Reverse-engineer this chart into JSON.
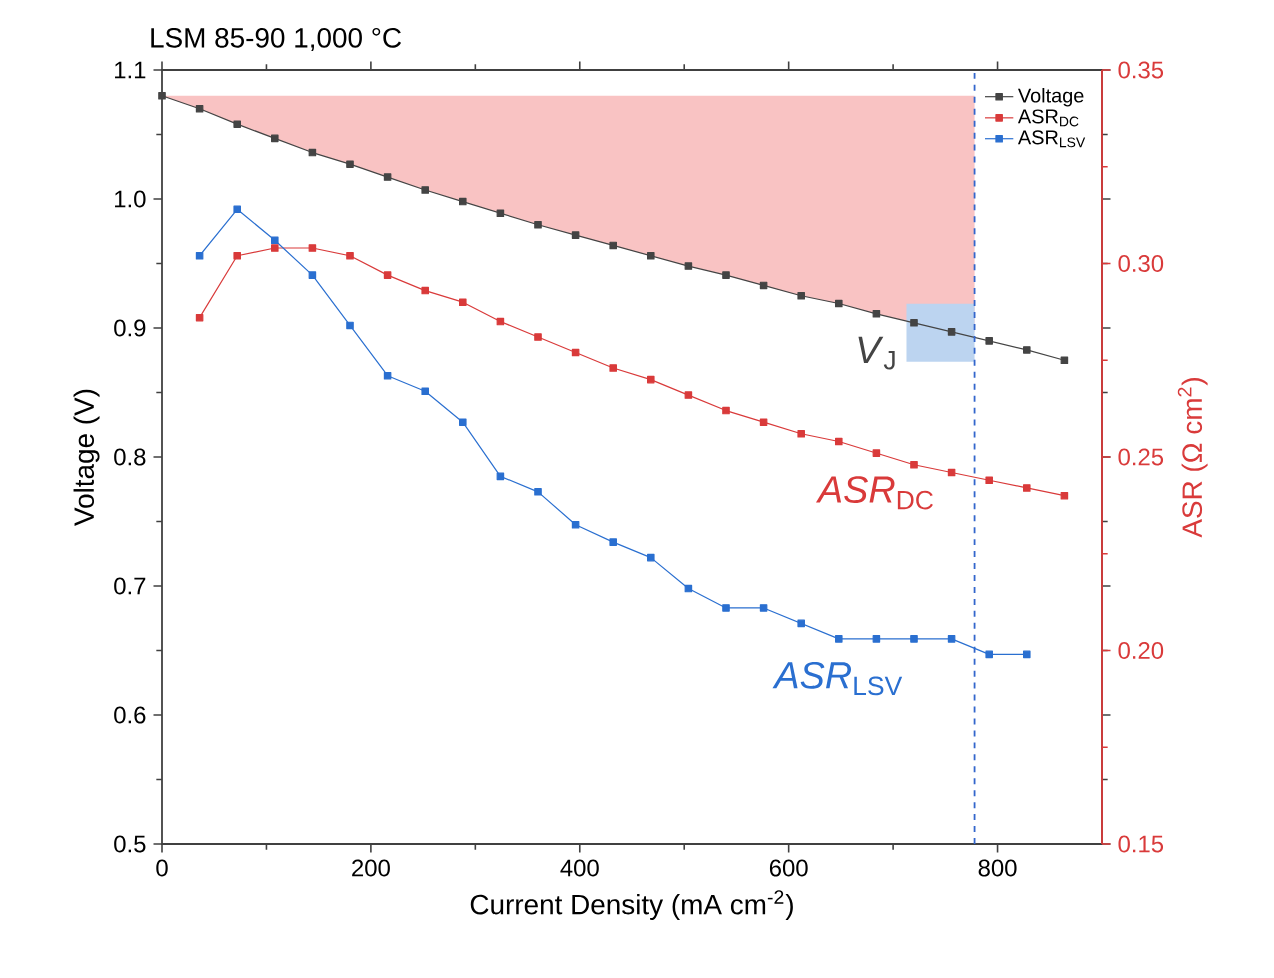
{
  "chart_data": {
    "type": "line",
    "title": "LSM 85-90 1,000 °C",
    "xlabel": "Current Density (mA cm$^{-2}$)",
    "ylabel": "Voltage (V)",
    "y2label": "ASR (Ω cm$^{2}$)",
    "xlim": [
      0,
      900
    ],
    "xticks": [
      0,
      200,
      400,
      600,
      800
    ],
    "ylim": [
      0.5,
      1.1
    ],
    "yticks": [
      0.5,
      0.6,
      0.7,
      0.8,
      0.9,
      {
        "value": 1,
        "label": "1.0"
      },
      1.1
    ],
    "y2lim": [
      0.15,
      0.35
    ],
    "y2ticks": [
      0.15,
      {
        "value": 0.2,
        "label": "0.20"
      },
      0.25,
      {
        "value": 0.3,
        "label": "0.30"
      },
      0.35
    ],
    "marker": "square",
    "legend": "top right",
    "series": [
      {
        "name": "Voltage",
        "color": "#444444",
        "x": [
          0,
          36,
          72,
          108,
          144,
          180,
          216,
          252,
          288,
          324,
          360,
          396,
          432,
          468,
          504,
          540,
          576,
          612,
          648,
          684,
          720,
          756,
          792,
          828,
          864
        ],
        "values": [
          1.08,
          1.07,
          1.058,
          1.047,
          1.036,
          1.027,
          1.017,
          1.007,
          0.998,
          0.989,
          0.98,
          0.972,
          0.964,
          0.956,
          0.948,
          0.941,
          0.933,
          0.925,
          0.919,
          0.911,
          0.904,
          0.897,
          0.89,
          0.883,
          0.875
        ]
      },
      {
        "name": "ASR$_{DC}$",
        "color": "#d93a3a",
        "axis": "y2",
        "x": [
          36,
          72,
          108,
          144,
          180,
          216,
          252,
          288,
          324,
          360,
          396,
          432,
          468,
          504,
          540,
          576,
          612,
          648,
          684,
          720,
          756,
          792,
          828,
          864
        ],
        "values": [
          0.286,
          0.302,
          0.304,
          0.304,
          0.302,
          0.297,
          0.293,
          0.29,
          0.285,
          0.281,
          0.277,
          0.273,
          0.27,
          0.266,
          0.262,
          0.259,
          0.256,
          0.254,
          0.251,
          0.248,
          0.246,
          0.244,
          0.242,
          0.24
        ]
      },
      {
        "name": "ASR$_{LSV}$",
        "color": "#2a6fd0",
        "axis": "y2",
        "x": [
          36,
          72,
          108,
          144,
          180,
          216,
          252,
          288,
          324,
          360,
          396,
          432,
          468,
          504,
          540,
          576,
          612,
          648,
          684,
          720,
          756,
          792,
          828
        ],
        "values": [
          0.302,
          0.314,
          0.306,
          0.297,
          0.284,
          0.271,
          0.267,
          0.259,
          0.245,
          0.241,
          0.2325,
          0.228,
          0.224,
          0.216,
          0.211,
          0.211,
          0.207,
          0.203,
          0.203,
          0.203,
          0.203,
          0.199,
          0.199
        ]
      }
    ],
    "ref_lines": [
      {
        "axis": "x",
        "value": 778,
        "color": "#3366cc",
        "line_style": "dashed"
      }
    ],
    "annotations": [
      "*V*$_{J}$",
      "*ASR*$_{DC}$",
      "*ASR*$_{LSV}$"
    ]
  }
}
